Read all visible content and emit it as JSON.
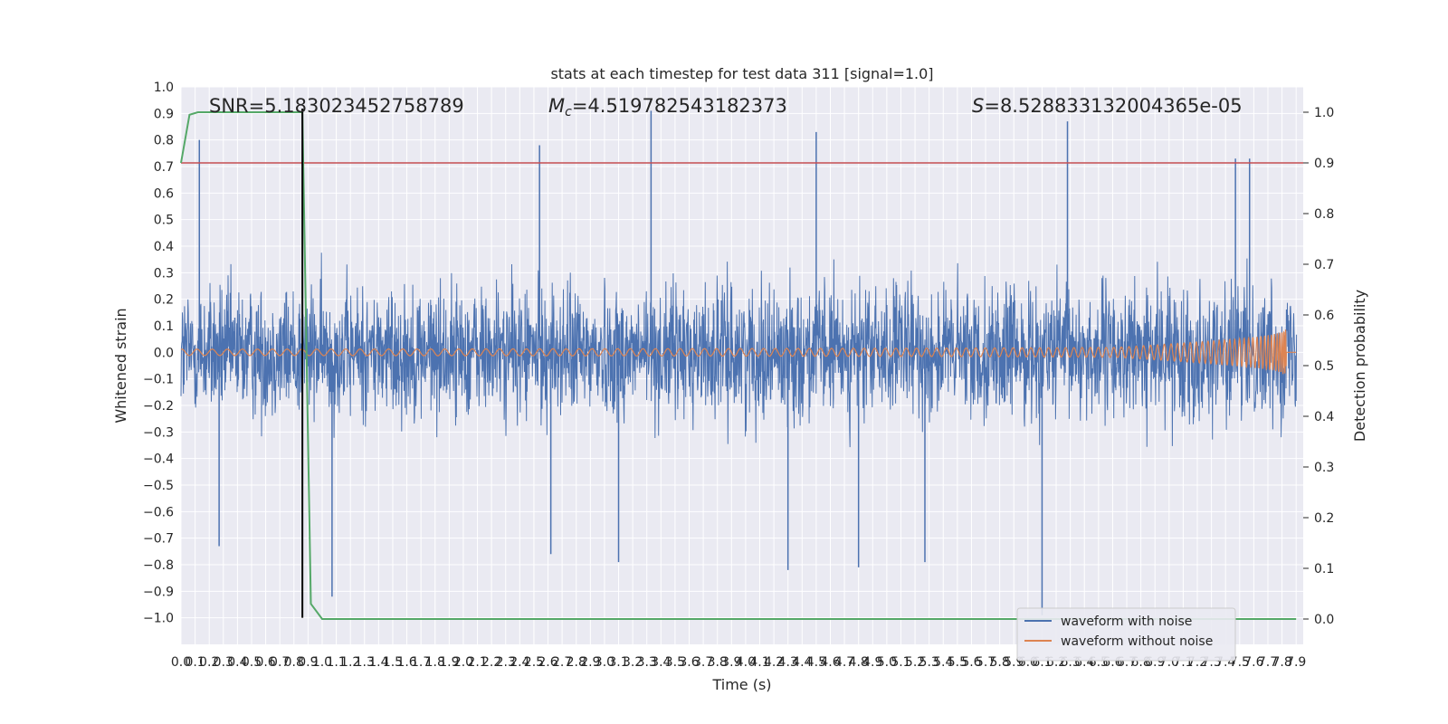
{
  "chart_data": {
    "type": "line",
    "title": "stats at each timestep for test data 311 [signal=1.0]",
    "xlabel": "Time (s)",
    "ylabel": "Whitened strain",
    "ylabel_right": "Detection probability",
    "xlim": [
      0.0,
      7.95
    ],
    "ylim": [
      -1.1,
      1.0
    ],
    "ylim_right": [
      -0.05,
      1.05
    ],
    "x_ticks": [
      "0.0",
      "0.1",
      "0.2",
      "0.3",
      "0.4",
      "0.5",
      "0.6",
      "0.7",
      "0.8",
      "0.9",
      "1.0",
      "1.1",
      "1.2",
      "1.3",
      "1.4",
      "1.5",
      "1.6",
      "1.7",
      "1.8",
      "1.9",
      "2.0",
      "2.1",
      "2.2",
      "2.3",
      "2.4",
      "2.5",
      "2.6",
      "2.7",
      "2.8",
      "2.9",
      "3.0",
      "3.1",
      "3.2",
      "3.3",
      "3.4",
      "3.5",
      "3.6",
      "3.7",
      "3.8",
      "3.9",
      "4.0",
      "4.1",
      "4.2",
      "4.3",
      "4.4",
      "4.5",
      "4.6",
      "4.7",
      "4.8",
      "4.9",
      "5.0",
      "5.1",
      "5.2",
      "5.3",
      "5.4",
      "5.5",
      "5.6",
      "5.7",
      "5.8",
      "5.9",
      "6.0",
      "6.1",
      "6.2",
      "6.3",
      "6.4",
      "6.5",
      "6.6",
      "6.7",
      "6.8",
      "6.9",
      "7.0",
      "7.1",
      "7.2",
      "7.3",
      "7.4",
      "7.5",
      "7.6",
      "7.7",
      "7.8",
      "7.9"
    ],
    "y_ticks": [
      "1.0",
      "0.9",
      "0.8",
      "0.7",
      "0.6",
      "0.5",
      "0.4",
      "0.3",
      "0.2",
      "0.1",
      "0.0",
      "−0.1",
      "−0.2",
      "−0.3",
      "−0.4",
      "−0.5",
      "−0.6",
      "−0.7",
      "−0.8",
      "−0.9",
      "−1.0"
    ],
    "y_ticks_right": [
      "1.0",
      "0.9",
      "0.8",
      "0.7",
      "0.6",
      "0.5",
      "0.4",
      "0.3",
      "0.2",
      "0.1",
      "0.0"
    ],
    "annotations": {
      "snr": "SNR=5.183023452758789",
      "mc_symbol": "M",
      "mc_sub": "c",
      "mc_value": "=4.519782543182373",
      "s_symbol": "S",
      "s_value": "=8.528833132004365e-05"
    },
    "series": [
      {
        "name": "waveform with noise",
        "axis": "left",
        "color": "#4c72b0",
        "description_only": false
      },
      {
        "name": "waveform without noise",
        "axis": "left",
        "color": "#dd8452"
      }
    ],
    "detection_probability": {
      "axis": "right",
      "color": "#55a868",
      "x": [
        0.0,
        0.06,
        0.12,
        0.2,
        0.86,
        0.92,
        1.0,
        7.9
      ],
      "y": [
        0.9,
        0.995,
        1.0,
        1.0,
        1.0,
        0.03,
        0.0,
        0.0
      ]
    },
    "threshold_line": {
      "axis": "right",
      "value": 0.9,
      "color": "#c44e52"
    },
    "vertical_line": {
      "x": 0.86,
      "color": "#000000"
    },
    "noise_spikes": [
      {
        "x": 0.13,
        "y": 0.8
      },
      {
        "x": 0.27,
        "y": -0.73
      },
      {
        "x": 1.07,
        "y": -0.92
      },
      {
        "x": 2.54,
        "y": 0.78
      },
      {
        "x": 2.62,
        "y": -0.76
      },
      {
        "x": 3.1,
        "y": -0.79
      },
      {
        "x": 3.33,
        "y": 0.91
      },
      {
        "x": 4.3,
        "y": -0.82
      },
      {
        "x": 4.5,
        "y": 0.83
      },
      {
        "x": 4.8,
        "y": -0.81
      },
      {
        "x": 5.27,
        "y": -0.79
      },
      {
        "x": 6.1,
        "y": -0.99
      },
      {
        "x": 6.28,
        "y": 0.87
      },
      {
        "x": 7.47,
        "y": 0.73
      },
      {
        "x": 7.57,
        "y": 0.73
      }
    ],
    "legend": {
      "placement": "lower-right",
      "entries": [
        "waveform with noise",
        "waveform without noise"
      ]
    },
    "grid": true,
    "colors": {
      "background": "#eaeaf2",
      "grid": "#ffffff"
    }
  }
}
